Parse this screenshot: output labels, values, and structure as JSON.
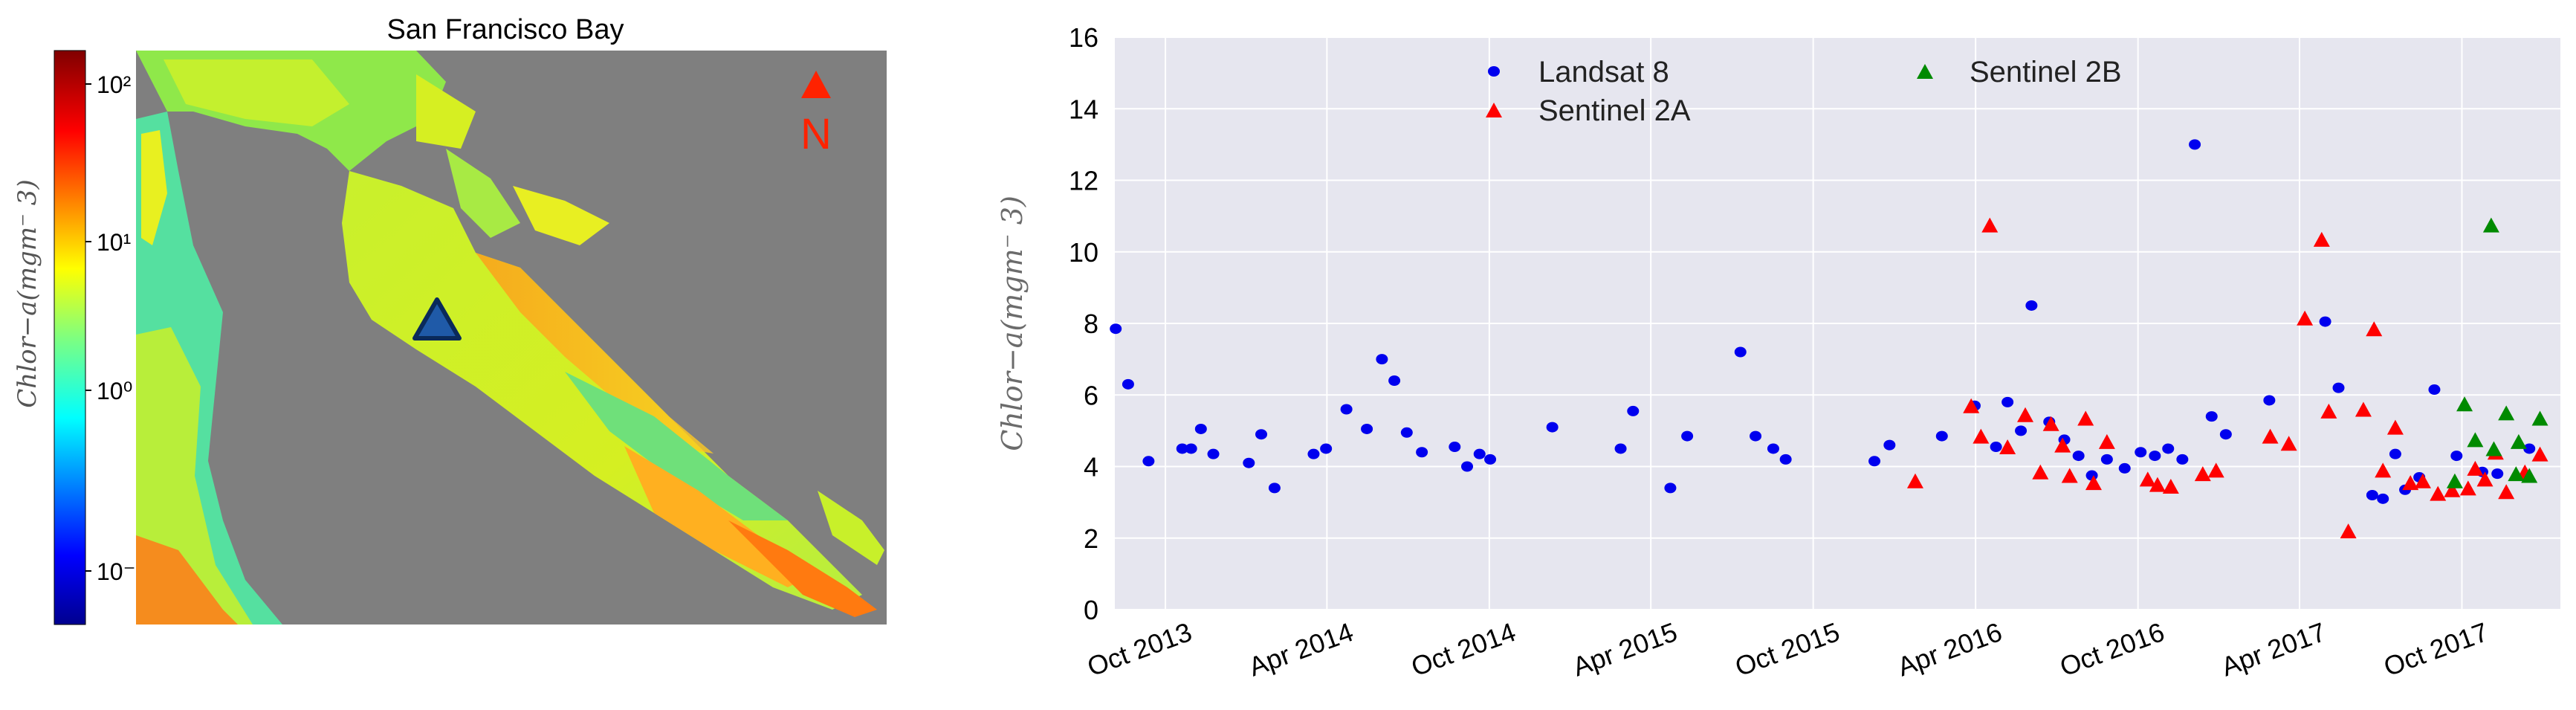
{
  "chart_data": [
    {
      "type": "heatmap",
      "title": "San Francisco Bay",
      "colorbar": {
        "label": "Chlor−a(mgm⁻ 3)",
        "scale": "log",
        "range": [
          0.05,
          150
        ],
        "tick_labels": [
          "10²",
          "10¹",
          "10⁰",
          "10⁻¹"
        ],
        "colormap": "jet"
      },
      "annotations": {
        "north_label": "N",
        "north_color": "#ff2200",
        "station_marker": "blue-triangle",
        "station_color": "#1f5aa8"
      },
      "colors": {
        "land": "#7f7f7f",
        "water_low": "#55e0a0",
        "water_mid": "#c8f02a",
        "water_high": "#ff8a1c"
      }
    },
    {
      "type": "scatter",
      "title": "",
      "xlabel": "",
      "ylabel": "Chlor−a(mgm⁻ 3)",
      "ylim": [
        0,
        16
      ],
      "yticks": [
        0,
        2,
        4,
        6,
        8,
        10,
        12,
        14,
        16
      ],
      "xlim": [
        "2013-08-05",
        "2018-01-20"
      ],
      "xticks": [
        {
          "date": "2013-10-01",
          "label": "Oct 2013"
        },
        {
          "date": "2014-04-01",
          "label": "Apr 2014"
        },
        {
          "date": "2014-10-01",
          "label": "Oct 2014"
        },
        {
          "date": "2015-04-01",
          "label": "Apr 2015"
        },
        {
          "date": "2015-10-01",
          "label": "Oct 2015"
        },
        {
          "date": "2016-04-01",
          "label": "Apr 2016"
        },
        {
          "date": "2016-10-01",
          "label": "Oct 2016"
        },
        {
          "date": "2017-04-01",
          "label": "Apr 2017"
        },
        {
          "date": "2017-10-01",
          "label": "Oct 2017"
        }
      ],
      "grid": true,
      "legend_position": "top",
      "series": [
        {
          "name": "Landsat 8",
          "marker": "circle",
          "color": "#0000ee",
          "points": [
            [
              "2013-08-06",
              7.85
            ],
            [
              "2013-08-20",
              6.3
            ],
            [
              "2013-09-12",
              4.15
            ],
            [
              "2013-10-20",
              4.5
            ],
            [
              "2013-10-30",
              4.5
            ],
            [
              "2013-11-10",
              5.05
            ],
            [
              "2013-11-24",
              4.35
            ],
            [
              "2014-01-03",
              4.1
            ],
            [
              "2014-01-17",
              4.9
            ],
            [
              "2014-02-01",
              3.4
            ],
            [
              "2014-03-17",
              4.35
            ],
            [
              "2014-03-31",
              4.5
            ],
            [
              "2014-04-23",
              5.6
            ],
            [
              "2014-05-16",
              5.05
            ],
            [
              "2014-06-02",
              7.0
            ],
            [
              "2014-06-16",
              6.4
            ],
            [
              "2014-06-30",
              4.95
            ],
            [
              "2014-07-17",
              4.4
            ],
            [
              "2014-08-23",
              4.55
            ],
            [
              "2014-09-06",
              4.0
            ],
            [
              "2014-09-20",
              4.35
            ],
            [
              "2014-10-02",
              4.2
            ],
            [
              "2014-12-11",
              5.1
            ],
            [
              "2015-02-26",
              4.5
            ],
            [
              "2015-03-12",
              5.55
            ],
            [
              "2015-04-23",
              3.4
            ],
            [
              "2015-05-12",
              4.85
            ],
            [
              "2015-07-11",
              7.2
            ],
            [
              "2015-07-28",
              4.85
            ],
            [
              "2015-08-17",
              4.5
            ],
            [
              "2015-08-31",
              4.2
            ],
            [
              "2015-12-09",
              4.15
            ],
            [
              "2015-12-26",
              4.6
            ],
            [
              "2016-02-23",
              4.85
            ],
            [
              "2016-03-31",
              5.7
            ],
            [
              "2016-04-24",
              4.55
            ],
            [
              "2016-05-07",
              5.8
            ],
            [
              "2016-05-22",
              5.0
            ],
            [
              "2016-06-03",
              8.5
            ],
            [
              "2016-06-23",
              5.25
            ],
            [
              "2016-07-10",
              4.75
            ],
            [
              "2016-07-26",
              4.3
            ],
            [
              "2016-08-10",
              3.75
            ],
            [
              "2016-08-27",
              4.2
            ],
            [
              "2016-09-16",
              3.95
            ],
            [
              "2016-10-04",
              4.4
            ],
            [
              "2016-10-20",
              4.3
            ],
            [
              "2016-11-04",
              4.5
            ],
            [
              "2016-11-20",
              4.2
            ],
            [
              "2016-12-04",
              13.0
            ],
            [
              "2016-12-23",
              5.4
            ],
            [
              "2017-01-08",
              4.9
            ],
            [
              "2017-02-26",
              5.85
            ],
            [
              "2017-04-30",
              8.05
            ],
            [
              "2017-05-15",
              6.2
            ],
            [
              "2017-06-22",
              3.2
            ],
            [
              "2017-07-04",
              3.1
            ],
            [
              "2017-07-18",
              4.35
            ],
            [
              "2017-07-29",
              3.35
            ],
            [
              "2017-08-14",
              3.7
            ],
            [
              "2017-08-31",
              6.15
            ],
            [
              "2017-09-25",
              4.3
            ],
            [
              "2017-10-24",
              3.85
            ],
            [
              "2017-11-10",
              3.8
            ],
            [
              "2017-12-16",
              4.5
            ]
          ]
        },
        {
          "name": "Sentinel 2A",
          "marker": "triangle",
          "color": "#ff0000",
          "points": [
            [
              "2016-01-24",
              3.6
            ],
            [
              "2016-03-27",
              5.7
            ],
            [
              "2016-04-07",
              4.85
            ],
            [
              "2016-04-17",
              10.75
            ],
            [
              "2016-05-07",
              4.55
            ],
            [
              "2016-05-27",
              5.45
            ],
            [
              "2016-06-13",
              3.85
            ],
            [
              "2016-06-25",
              5.2
            ],
            [
              "2016-07-08",
              4.6
            ],
            [
              "2016-07-16",
              3.75
            ],
            [
              "2016-08-03",
              5.35
            ],
            [
              "2016-08-12",
              3.55
            ],
            [
              "2016-08-27",
              4.7
            ],
            [
              "2016-10-12",
              3.65
            ],
            [
              "2016-10-23",
              3.5
            ],
            [
              "2016-11-07",
              3.45
            ],
            [
              "2016-12-13",
              3.8
            ],
            [
              "2016-12-28",
              3.9
            ],
            [
              "2017-02-27",
              4.85
            ],
            [
              "2017-03-20",
              4.65
            ],
            [
              "2017-04-07",
              8.15
            ],
            [
              "2017-04-26",
              10.35
            ],
            [
              "2017-05-04",
              5.55
            ],
            [
              "2017-05-26",
              2.2
            ],
            [
              "2017-06-12",
              5.6
            ],
            [
              "2017-06-24",
              7.85
            ],
            [
              "2017-07-04",
              3.9
            ],
            [
              "2017-07-18",
              5.1
            ],
            [
              "2017-08-04",
              3.55
            ],
            [
              "2017-08-18",
              3.6
            ],
            [
              "2017-09-04",
              3.25
            ],
            [
              "2017-09-20",
              3.35
            ],
            [
              "2017-10-08",
              3.4
            ],
            [
              "2017-10-16",
              3.95
            ],
            [
              "2017-10-27",
              3.65
            ],
            [
              "2017-11-08",
              4.4
            ],
            [
              "2017-11-20",
              3.3
            ],
            [
              "2017-12-11",
              3.85
            ],
            [
              "2017-12-28",
              4.35
            ]
          ]
        },
        {
          "name": "Sentinel 2B",
          "marker": "triangle",
          "color": "#008a00",
          "points": [
            [
              "2017-09-23",
              3.6
            ],
            [
              "2017-10-04",
              5.75
            ],
            [
              "2017-10-16",
              4.75
            ],
            [
              "2017-11-03",
              10.75
            ],
            [
              "2017-11-06",
              4.5
            ],
            [
              "2017-11-20",
              5.5
            ],
            [
              "2017-12-01",
              3.8
            ],
            [
              "2017-12-04",
              4.7
            ],
            [
              "2017-12-16",
              3.75
            ],
            [
              "2017-12-28",
              5.35
            ]
          ]
        }
      ]
    }
  ]
}
